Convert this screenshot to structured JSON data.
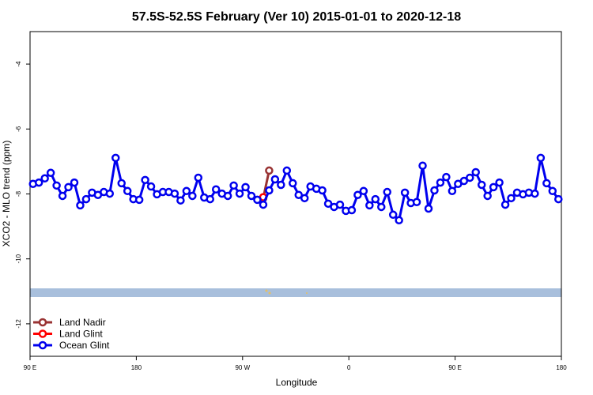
{
  "chart_data": {
    "type": "line",
    "title": "57.5S-52.5S February (Ver 10)   2015-01-01 to 2020-12-18",
    "xlabel": "Longitude",
    "ylabel": "XCO2 - MLO trend (ppm)",
    "xlim": [
      90,
      540
    ],
    "ylim": [
      -13,
      -3
    ],
    "xticks": [
      {
        "value": 90,
        "label": "90 E"
      },
      180,
      {
        "value": 270,
        "label": "90 W"
      },
      {
        "value": 360,
        "label": "0"
      },
      {
        "value": 450,
        "label": "90 E"
      },
      {
        "value": 540,
        "label": "180"
      }
    ],
    "yticks": [
      -12,
      -10,
      -8,
      -6,
      -4
    ],
    "legend": "lower left",
    "series": [
      {
        "name": "Land Nadir",
        "color": "#993333",
        "x": [
          287.5,
          292.5
        ],
        "values": [
          -8.13,
          -7.28
        ]
      },
      {
        "name": "Land Glint",
        "color": "#ff0000",
        "x": [
          287.5
        ],
        "values": [
          -8.1
        ]
      },
      {
        "name": "Ocean Glint",
        "color": "#0000ee",
        "x": [
          92.5,
          97.5,
          102.5,
          107.5,
          112.5,
          117.5,
          122.5,
          127.5,
          132.5,
          137.5,
          142.5,
          147.5,
          152.5,
          157.5,
          162.5,
          167.5,
          172.5,
          177.5,
          182.5,
          187.5,
          192.5,
          197.5,
          202.5,
          207.5,
          212.5,
          217.5,
          222.5,
          227.5,
          232.5,
          237.5,
          242.5,
          247.5,
          252.5,
          257.5,
          262.5,
          267.5,
          272.5,
          277.5,
          282.5,
          287.5,
          292.5,
          297.5,
          302.5,
          307.5,
          312.5,
          317.5,
          322.5,
          327.5,
          332.5,
          337.5,
          342.5,
          347.5,
          352.5,
          357.5,
          362.5,
          367.5,
          372.5,
          377.5,
          382.5,
          387.5,
          392.5,
          397.5,
          402.5,
          407.5,
          412.5,
          417.5,
          422.5,
          427.5,
          432.5,
          437.5,
          442.5,
          447.5,
          452.5,
          457.5,
          462.5,
          467.5,
          472.5,
          477.5,
          482.5,
          487.5,
          492.5,
          497.5,
          502.5,
          507.5,
          512.5,
          517.5,
          522.5,
          527.5,
          532.5,
          537.5
        ],
        "values": [
          -7.69,
          -7.65,
          -7.52,
          -7.35,
          -7.74,
          -8.06,
          -7.79,
          -7.65,
          -8.35,
          -8.16,
          -7.96,
          -8.03,
          -7.94,
          -7.99,
          -6.89,
          -7.67,
          -7.91,
          -8.16,
          -8.18,
          -7.57,
          -7.77,
          -8.01,
          -7.94,
          -7.94,
          -7.99,
          -8.2,
          -7.91,
          -8.06,
          -7.5,
          -8.11,
          -8.16,
          -7.86,
          -7.99,
          -8.06,
          -7.74,
          -7.99,
          -7.79,
          -8.06,
          -8.18,
          -8.33,
          -7.89,
          -7.55,
          -7.72,
          -7.28,
          -7.67,
          -8.03,
          -8.13,
          -7.77,
          -7.84,
          -7.89,
          -8.3,
          -8.4,
          -8.33,
          -8.52,
          -8.5,
          -8.03,
          -7.91,
          -8.35,
          -8.16,
          -8.4,
          -7.94,
          -8.64,
          -8.81,
          -7.96,
          -8.28,
          -8.25,
          -7.13,
          -8.45,
          -7.89,
          -7.65,
          -7.48,
          -7.91,
          -7.69,
          -7.6,
          -7.5,
          -7.33,
          -7.72,
          -8.06,
          -7.79,
          -7.65,
          -8.33,
          -8.13,
          -7.96,
          -8.01,
          -7.96,
          -7.99,
          -6.89,
          -7.67,
          -7.91,
          -8.16
        ]
      }
    ]
  }
}
